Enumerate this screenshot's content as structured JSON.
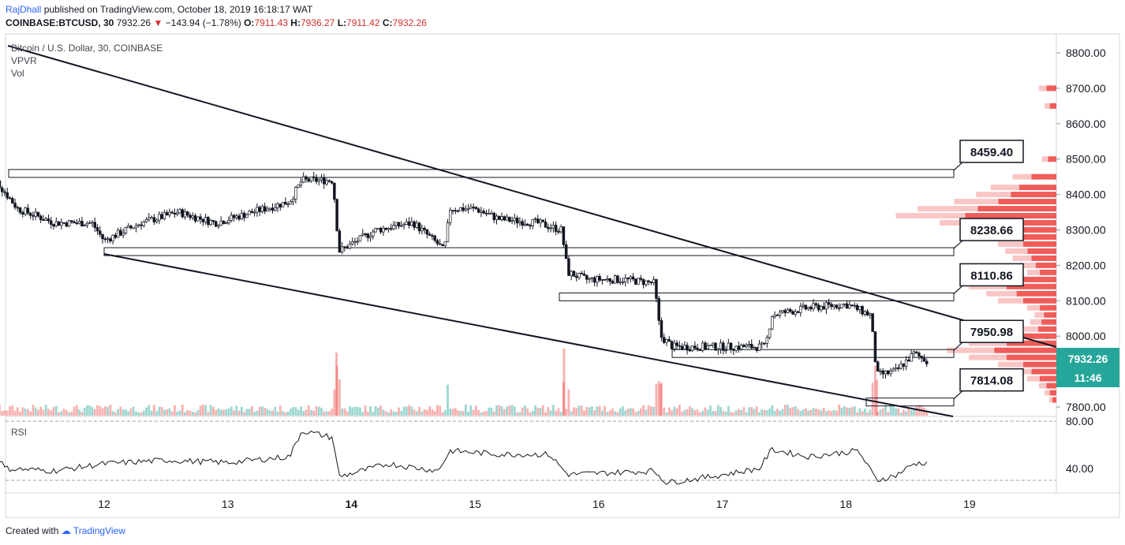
{
  "header": {
    "author": "RajDhall",
    "published": "published on TradingView.com, October 18, 2019 16:18:17 WAT",
    "symbol": "COINBASE:BTCUSD, 30",
    "last": "7932.26",
    "change": "−143.94 (−1.78%)",
    "open_label": "O:",
    "open": "7911.43",
    "high_label": "H:",
    "high": "7936.27",
    "low_label": "L:",
    "low": "7911.42",
    "close_label": "C:",
    "close": "7932.26"
  },
  "legend": {
    "title": "Bitcoin / U.S. Dollar, 30, COINBASE",
    "vpvr": "VPVR",
    "vol": "Vol",
    "rsi": "RSI"
  },
  "price_axis": [
    "8800.00",
    "8700.00",
    "8600.00",
    "8500.00",
    "8400.00",
    "8300.00",
    "8200.00",
    "8100.00",
    "8000.00",
    "7900.00",
    "7800.00"
  ],
  "rsi_axis": [
    "80.00",
    "40.00"
  ],
  "time_axis": [
    "12",
    "13",
    "14",
    "15",
    "16",
    "17",
    "18",
    "19"
  ],
  "current_price": {
    "value": "7932.26",
    "timer": "11:46",
    "color": "#26a69a"
  },
  "levels": [
    {
      "label": "8459.40",
      "price": 8459.4
    },
    {
      "label": "8238.66",
      "price": 8238.66
    },
    {
      "label": "8110.86",
      "price": 8110.86
    },
    {
      "label": "7950.98",
      "price": 7950.98
    },
    {
      "label": "7814.08",
      "price": 7814.08
    }
  ],
  "colors": {
    "up": "#26a69a",
    "down": "#ef5350",
    "candle_body": "#ffffff",
    "wick": "#131722"
  },
  "footer": {
    "created": "Created with",
    "brand": "TradingView"
  },
  "chart_data": {
    "type": "candlestick",
    "title": "Bitcoin / U.S. Dollar, 30, COINBASE",
    "x": [
      "12",
      "13",
      "14",
      "15",
      "16",
      "17",
      "18",
      "19"
    ],
    "price_range": [
      7780,
      8830
    ],
    "rsi_range": [
      25,
      85
    ],
    "support_resistance": [
      8459.4,
      8238.66,
      8110.86,
      7950.98,
      7814.08
    ],
    "price_path": [
      [
        11.05,
        8750
      ],
      [
        11.1,
        8450
      ],
      [
        11.3,
        8360
      ],
      [
        11.6,
        8320
      ],
      [
        11.9,
        8320
      ],
      [
        12.0,
        8270
      ],
      [
        12.3,
        8320
      ],
      [
        12.6,
        8350
      ],
      [
        12.9,
        8320
      ],
      [
        13.2,
        8350
      ],
      [
        13.5,
        8380
      ],
      [
        13.6,
        8440
      ],
      [
        13.85,
        8440
      ],
      [
        13.9,
        8240
      ],
      [
        14.2,
        8300
      ],
      [
        14.5,
        8320
      ],
      [
        14.7,
        8260
      ],
      [
        14.75,
        8240
      ],
      [
        14.8,
        8360
      ],
      [
        15.0,
        8360
      ],
      [
        15.2,
        8330
      ],
      [
        15.5,
        8320
      ],
      [
        15.7,
        8300
      ],
      [
        15.75,
        8180
      ],
      [
        15.9,
        8160
      ],
      [
        16.2,
        8160
      ],
      [
        16.45,
        8150
      ],
      [
        16.5,
        8000
      ],
      [
        16.6,
        7970
      ],
      [
        16.9,
        7970
      ],
      [
        17.2,
        7970
      ],
      [
        17.35,
        7970
      ],
      [
        17.4,
        8060
      ],
      [
        17.7,
        8080
      ],
      [
        18.0,
        8090
      ],
      [
        18.2,
        8060
      ],
      [
        18.25,
        7890
      ],
      [
        18.4,
        7900
      ],
      [
        18.55,
        7950
      ],
      [
        18.65,
        7932
      ]
    ],
    "rsi_path": [
      [
        11.05,
        65
      ],
      [
        11.2,
        40
      ],
      [
        11.6,
        38
      ],
      [
        12.0,
        44
      ],
      [
        12.5,
        47
      ],
      [
        13.0,
        45
      ],
      [
        13.5,
        50
      ],
      [
        13.6,
        72
      ],
      [
        13.85,
        66
      ],
      [
        13.9,
        33
      ],
      [
        14.3,
        44
      ],
      [
        14.7,
        38
      ],
      [
        14.8,
        55
      ],
      [
        15.2,
        52
      ],
      [
        15.6,
        52
      ],
      [
        15.75,
        35
      ],
      [
        16.0,
        36
      ],
      [
        16.45,
        38
      ],
      [
        16.55,
        28
      ],
      [
        16.9,
        33
      ],
      [
        17.3,
        40
      ],
      [
        17.4,
        56
      ],
      [
        17.7,
        50
      ],
      [
        18.1,
        55
      ],
      [
        18.25,
        30
      ],
      [
        18.4,
        34
      ],
      [
        18.55,
        44
      ],
      [
        18.65,
        45
      ]
    ]
  }
}
